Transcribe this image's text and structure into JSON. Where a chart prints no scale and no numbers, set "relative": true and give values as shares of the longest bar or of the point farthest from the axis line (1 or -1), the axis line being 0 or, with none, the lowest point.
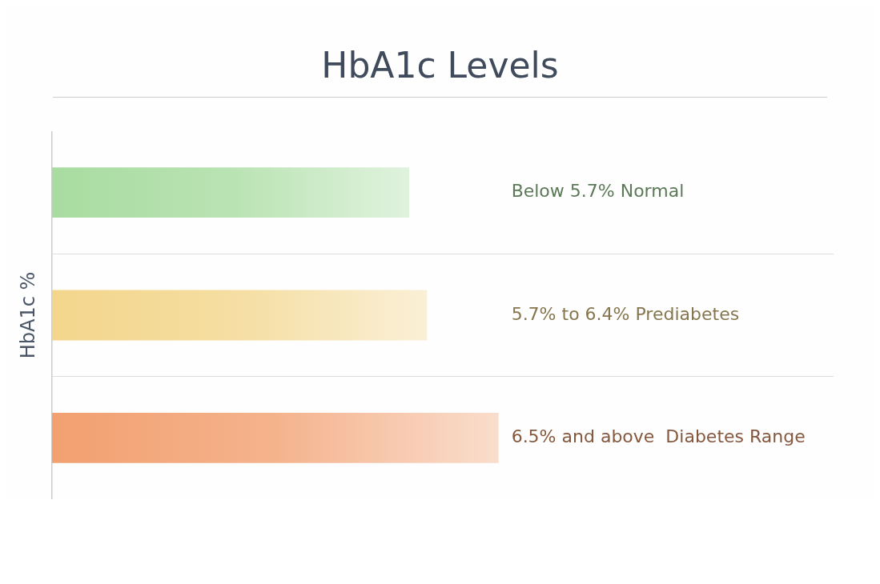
{
  "chart_data": {
    "type": "bar",
    "title": "HbA1c Levels",
    "ylabel": "HbA1c %",
    "orientation": "horizontal",
    "relative": true,
    "categories": [
      "Below 5.7% Normal",
      "5.7% to 6.4% Prediabetes",
      "6.5% and above  Diabetes Range"
    ],
    "values": [
      0.8,
      0.84,
      1
    ],
    "colors": [
      "#a8dca0",
      "#f3d68c",
      "#f2a070"
    ],
    "grid": "y",
    "legend": false
  }
}
